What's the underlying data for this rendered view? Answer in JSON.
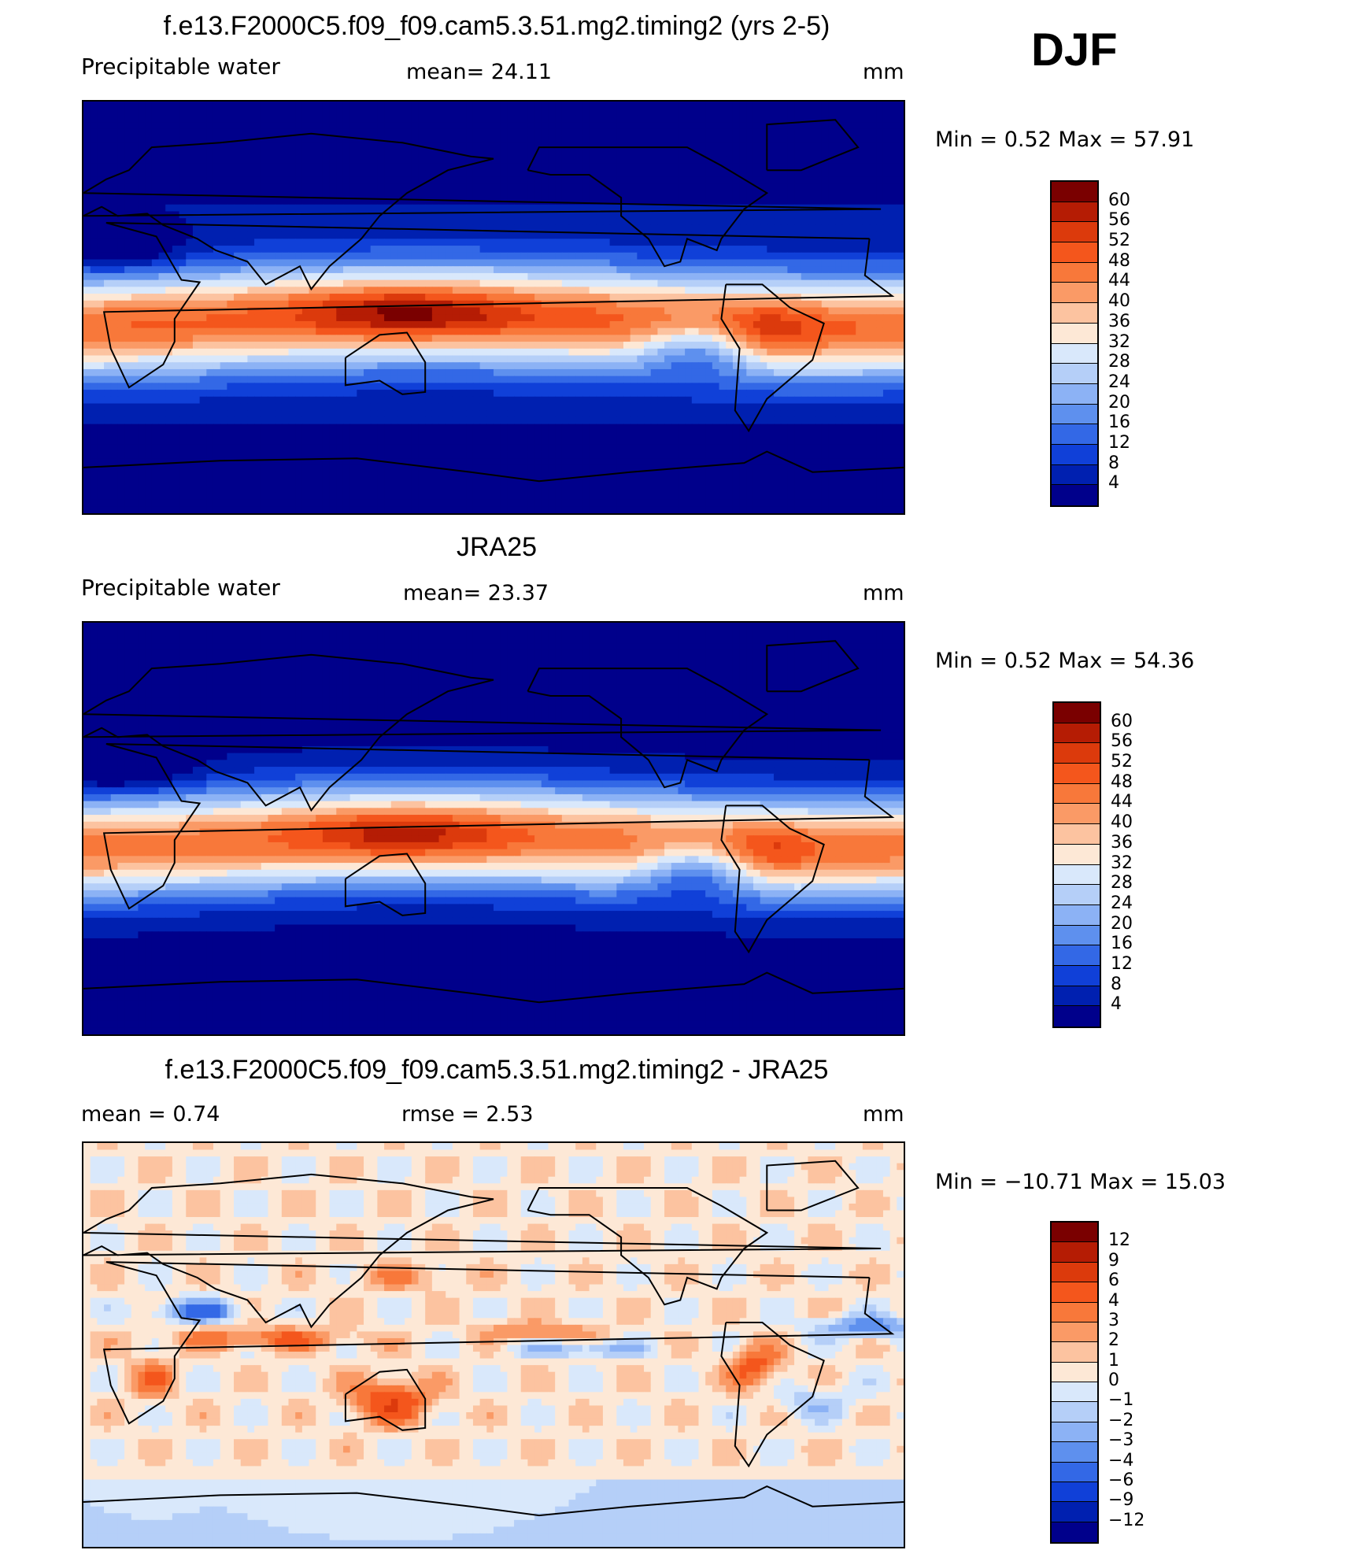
{
  "season": "DJF",
  "panels": [
    {
      "title": "f.e13.F2000C5.f09_f09.cam5.3.51.mg2.timing2 (yrs 2-5)",
      "left_label": "Precipitable  water",
      "center_label": "mean=   24.11",
      "right_label": "mm",
      "minmax": "Min  =     0.52  Max  =     57.91",
      "colorbar": {
        "labels": [
          "60",
          "56",
          "52",
          "48",
          "44",
          "40",
          "36",
          "32",
          "28",
          "24",
          "20",
          "16",
          "12",
          "8",
          "4"
        ],
        "colors": [
          "#7a0000",
          "#b51c04",
          "#dc3a0c",
          "#f4561c",
          "#f8783a",
          "#fa9a66",
          "#fcc3a0",
          "#fde8d6",
          "#d9e8fb",
          "#b5cff8",
          "#8cb2f5",
          "#5e90ee",
          "#3368e6",
          "#1040d8",
          "#0020b0",
          "#00008b"
        ]
      },
      "field": "model"
    },
    {
      "title": "JRA25",
      "left_label": "Precipitable  water",
      "center_label": "mean=   23.37",
      "right_label": "mm",
      "minmax": "Min  =     0.52  Max  =     54.36",
      "colorbar": {
        "labels": [
          "60",
          "56",
          "52",
          "48",
          "44",
          "40",
          "36",
          "32",
          "28",
          "24",
          "20",
          "16",
          "12",
          "8",
          "4"
        ],
        "colors": [
          "#7a0000",
          "#b51c04",
          "#dc3a0c",
          "#f4561c",
          "#f8783a",
          "#fa9a66",
          "#fcc3a0",
          "#fde8d6",
          "#d9e8fb",
          "#b5cff8",
          "#8cb2f5",
          "#5e90ee",
          "#3368e6",
          "#1040d8",
          "#0020b0",
          "#00008b"
        ]
      },
      "field": "obs"
    },
    {
      "title": "f.e13.F2000C5.f09_f09.cam5.3.51.mg2.timing2 - JRA25",
      "left_label": "mean  =     0.74",
      "center_label": "rmse  =     2.53",
      "right_label": "mm",
      "minmax": "Min  = −10.71  Max  =     15.03",
      "colorbar": {
        "labels": [
          "12",
          "9",
          "6",
          "4",
          "3",
          "2",
          "1",
          "0",
          "−1",
          "−2",
          "−3",
          "−4",
          "−6",
          "−9",
          "−12"
        ],
        "colors": [
          "#7a0000",
          "#b51c04",
          "#dc3a0c",
          "#f4561c",
          "#f8783a",
          "#fa9a66",
          "#fcc3a0",
          "#fde8d6",
          "#d9e8fb",
          "#b5cff8",
          "#8cb2f5",
          "#5e90ee",
          "#3368e6",
          "#1040d8",
          "#0020b0",
          "#00008b"
        ]
      },
      "field": "diff"
    }
  ]
}
